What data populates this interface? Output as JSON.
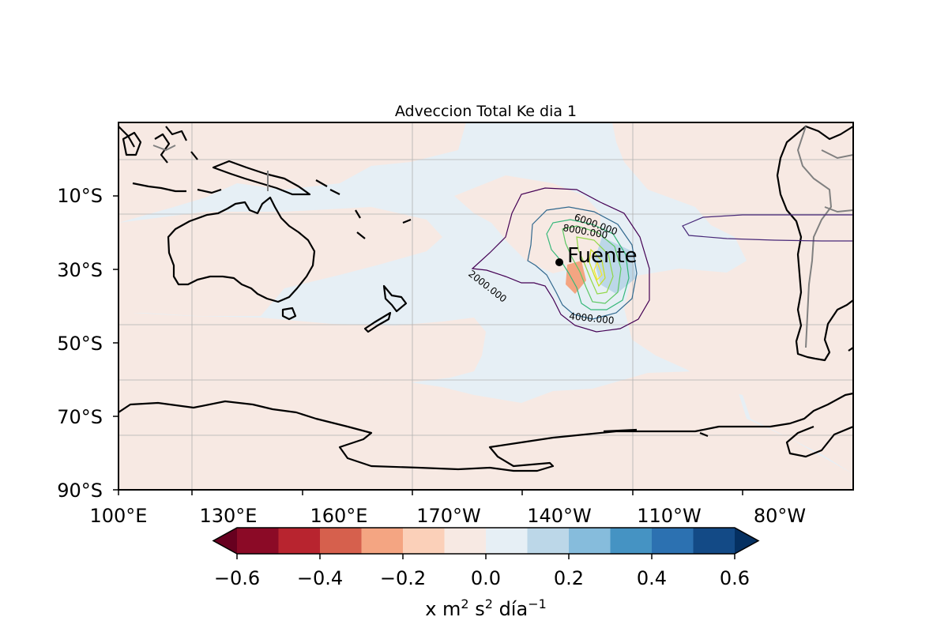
{
  "title": "Adveccion Total Ke dia 1",
  "map": {
    "projection": "PlateCarree",
    "lon_range": [
      100,
      300
    ],
    "lat_range": [
      -90,
      10
    ],
    "lon_ticks": [
      "100°E",
      "130°E",
      "160°E",
      "170°W",
      "140°W",
      "110°W",
      "80°W"
    ],
    "lat_ticks": [
      "10°S",
      "30°S",
      "50°S",
      "70°S",
      "90°S"
    ],
    "gridlines": true,
    "land_color": "#000000",
    "border_color": "#808080"
  },
  "marker": {
    "label": "Fuente",
    "lon": 220,
    "lat": -28
  },
  "contours": {
    "levels_labeled": [
      "2000.000",
      "4000.000",
      "6000.000",
      "8000.000"
    ],
    "colormap": "viridis"
  },
  "colorbar": {
    "ticks": [
      "−0.6",
      "−0.4",
      "−0.2",
      "0.0",
      "0.2",
      "0.4",
      "0.6"
    ],
    "label": "x m² s² día⁻¹",
    "label_parts": {
      "pre": "x m",
      "sup1": "2",
      "mid": " s",
      "sup2": "2",
      "post": " día",
      "sup3": "−1"
    },
    "colors": [
      "#67001f",
      "#8b0a26",
      "#b8242f",
      "#d6604d",
      "#f4a582",
      "#fbd0b9",
      "#f7e9e3",
      "#e6eff5",
      "#bcd7e8",
      "#86bcdc",
      "#4593c3",
      "#2c71b1",
      "#134a86",
      "#053061"
    ],
    "extend": "both"
  },
  "field_colors": {
    "positive_light": "#e6eff5",
    "negative_light": "#f7e9e3"
  }
}
